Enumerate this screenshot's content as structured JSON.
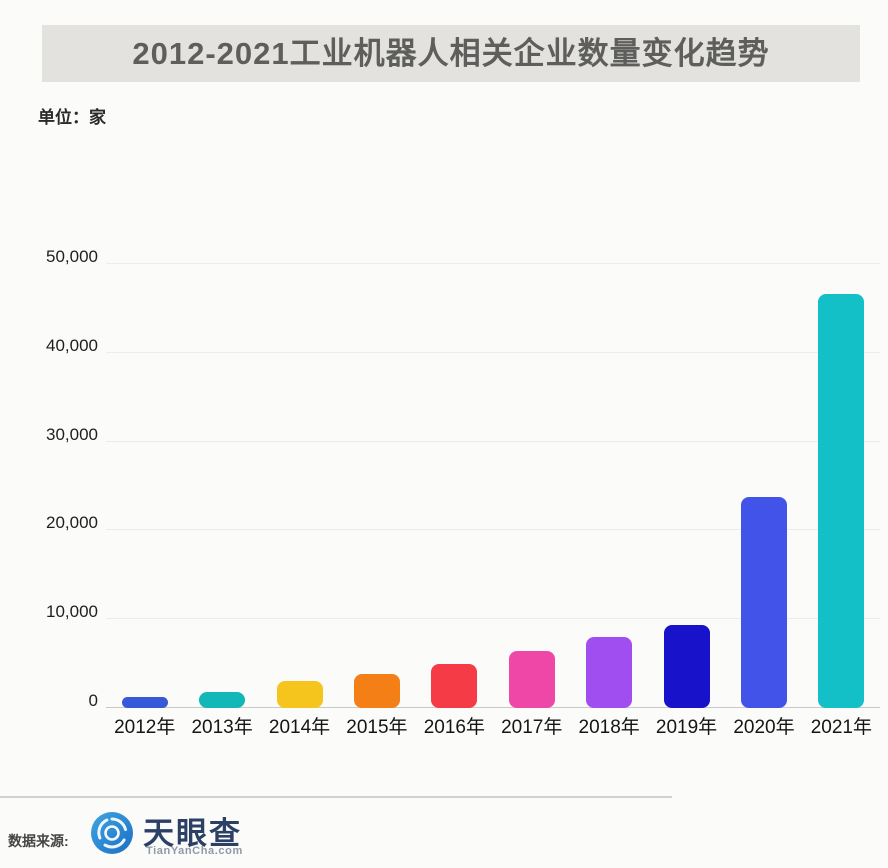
{
  "title": "2012-2021工业机器人相关企业数量变化趋势",
  "unit_label": "单位：家",
  "chart_data": {
    "type": "bar",
    "title": "2012-2021工业机器人相关企业数量变化趋势",
    "ylabel": "单位：家",
    "categories": [
      "2012年",
      "2013年",
      "2014年",
      "2015年",
      "2016年",
      "2017年",
      "2018年",
      "2019年",
      "2020年",
      "2021年"
    ],
    "values": [
      1200,
      1800,
      3000,
      3800,
      5000,
      6400,
      8000,
      9400,
      23800,
      46600
    ],
    "bar_colors": [
      "#3758d8",
      "#12b7b7",
      "#f6c51d",
      "#f57f17",
      "#f43b46",
      "#ef47a8",
      "#a14ef0",
      "#1813ca",
      "#4153e8",
      "#14c0c8"
    ],
    "ylim": [
      0,
      50000
    ],
    "yticks": [
      0,
      10000,
      20000,
      30000,
      40000,
      50000
    ],
    "ytick_labels": [
      "0",
      "10,000",
      "20,000",
      "30,000",
      "40,000",
      "50,000"
    ],
    "grid": true,
    "legend": false
  },
  "footer": {
    "source_label": "数据来源:",
    "logo_text": "天眼查",
    "logo_subtext": "TianYanCha.com",
    "logo_color": "#2e8fd5"
  },
  "colors": {
    "banner_bg": "#e3e2df",
    "banner_text": "#5e5e5c",
    "axis_line": "#c8c8c6",
    "gridline": "#ececea"
  }
}
